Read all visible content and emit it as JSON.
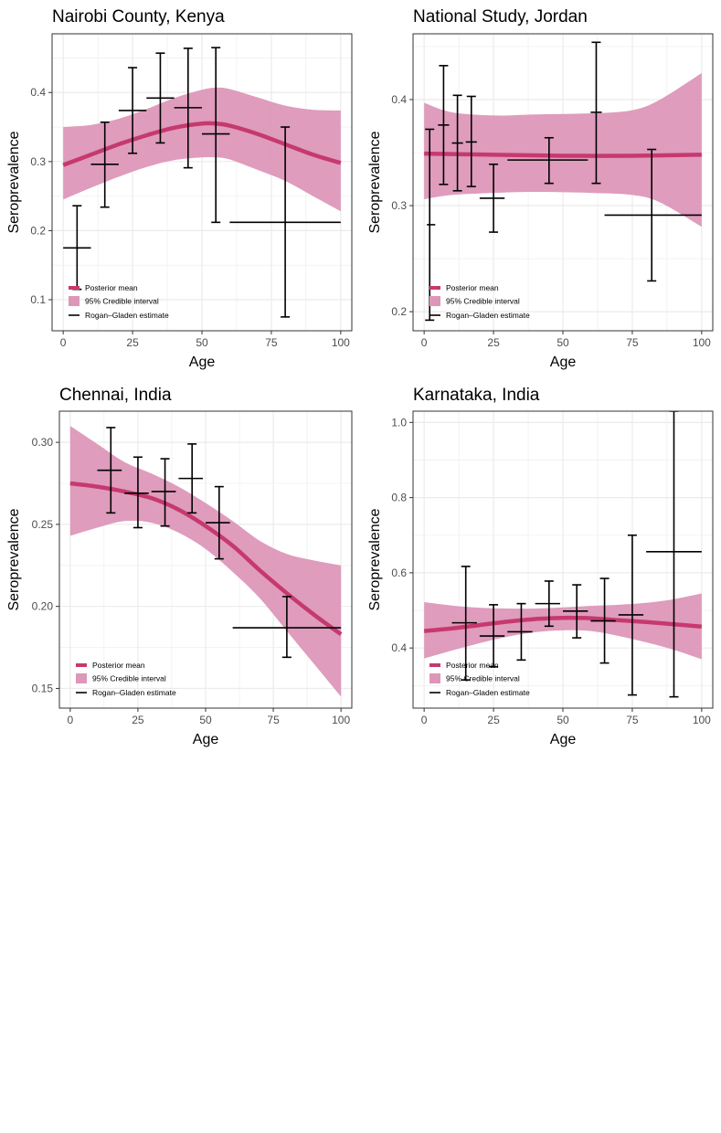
{
  "figure": {
    "colors": {
      "mean_line": "#c6396f",
      "ci_band": "#dd97b8",
      "estimate": "#000000",
      "grid": "#ebebeb",
      "panel_border": "#333333"
    },
    "legend": {
      "mean_label": "Posterior mean",
      "ci_label": "95% Credible interval",
      "estimate_label": "Rogan–Gladen estimate",
      "placement": "bottom-left"
    }
  },
  "chart_data": [
    {
      "type": "line",
      "title": "Nairobi County, Kenya",
      "xlabel": "Age",
      "ylabel": "Seroprevalence",
      "xlim": [
        -4,
        104
      ],
      "ylim": [
        0.055,
        0.485
      ],
      "xticks": [
        0,
        25,
        50,
        75,
        100
      ],
      "xtick_labels": [
        "0",
        "25",
        "50",
        "75",
        "100"
      ],
      "yticks": [
        0.1,
        0.2,
        0.3,
        0.4
      ],
      "ytick_labels": [
        "0.1",
        "0.2",
        "0.3",
        "0.4"
      ],
      "grid": true,
      "mean": {
        "x": [
          0,
          10,
          20,
          30,
          40,
          50,
          55,
          60,
          70,
          80,
          90,
          100
        ],
        "y": [
          0.295,
          0.31,
          0.325,
          0.338,
          0.349,
          0.355,
          0.355,
          0.352,
          0.34,
          0.325,
          0.31,
          0.298
        ]
      },
      "ci_upper": {
        "x": [
          0,
          10,
          20,
          30,
          40,
          50,
          55,
          60,
          70,
          80,
          90,
          100
        ],
        "y": [
          0.35,
          0.353,
          0.362,
          0.376,
          0.392,
          0.404,
          0.407,
          0.405,
          0.393,
          0.381,
          0.375,
          0.374
        ]
      },
      "ci_lower": {
        "x": [
          0,
          10,
          20,
          30,
          40,
          50,
          55,
          60,
          70,
          80,
          90,
          100
        ],
        "y": [
          0.245,
          0.262,
          0.278,
          0.292,
          0.302,
          0.306,
          0.306,
          0.303,
          0.288,
          0.272,
          0.25,
          0.228
        ]
      },
      "estimates": [
        {
          "x": 5,
          "xmin": 0,
          "xmax": 10,
          "y": 0.175,
          "ylow": 0.115,
          "yhigh": 0.236
        },
        {
          "x": 15,
          "xmin": 10,
          "xmax": 20,
          "y": 0.296,
          "ylow": 0.234,
          "yhigh": 0.357
        },
        {
          "x": 25,
          "xmin": 20,
          "xmax": 30,
          "y": 0.374,
          "ylow": 0.312,
          "yhigh": 0.436
        },
        {
          "x": 35,
          "xmin": 30,
          "xmax": 40,
          "y": 0.392,
          "ylow": 0.327,
          "yhigh": 0.457
        },
        {
          "x": 45,
          "xmin": 40,
          "xmax": 50,
          "y": 0.378,
          "ylow": 0.291,
          "yhigh": 0.464
        },
        {
          "x": 55,
          "xmin": 50,
          "xmax": 60,
          "y": 0.34,
          "ylow": 0.212,
          "yhigh": 0.465
        },
        {
          "x": 80,
          "xmin": 60,
          "xmax": 100,
          "y": 0.212,
          "ylow": 0.075,
          "yhigh": 0.35
        }
      ]
    },
    {
      "type": "line",
      "title": "National Study, Jordan",
      "xlabel": "Age",
      "ylabel": "Seroprevalence",
      "xlim": [
        -4,
        104
      ],
      "ylim": [
        0.182,
        0.462
      ],
      "xticks": [
        0,
        25,
        50,
        75,
        100
      ],
      "xtick_labels": [
        "0",
        "25",
        "50",
        "75",
        "100"
      ],
      "yticks": [
        0.2,
        0.3,
        0.4
      ],
      "ytick_labels": [
        "0.2",
        "0.3",
        "0.4"
      ],
      "grid": true,
      "mean": {
        "x": [
          0,
          25,
          50,
          75,
          100
        ],
        "y": [
          0.349,
          0.348,
          0.347,
          0.347,
          0.348
        ]
      },
      "ci_upper": {
        "x": [
          0,
          10,
          25,
          40,
          60,
          75,
          85,
          100
        ],
        "y": [
          0.397,
          0.388,
          0.385,
          0.386,
          0.387,
          0.39,
          0.4,
          0.425
        ]
      },
      "ci_lower": {
        "x": [
          0,
          10,
          25,
          40,
          60,
          75,
          85,
          100
        ],
        "y": [
          0.306,
          0.31,
          0.312,
          0.313,
          0.312,
          0.31,
          0.303,
          0.28
        ]
      },
      "estimates": [
        {
          "x": 2,
          "xmin": 1,
          "xmax": 4,
          "y": 0.282,
          "ylow": 0.192,
          "yhigh": 0.372
        },
        {
          "x": 7,
          "xmin": 5,
          "xmax": 9,
          "y": 0.376,
          "ylow": 0.32,
          "yhigh": 0.432
        },
        {
          "x": 12,
          "xmin": 10,
          "xmax": 14,
          "y": 0.359,
          "ylow": 0.314,
          "yhigh": 0.404
        },
        {
          "x": 17,
          "xmin": 15,
          "xmax": 19,
          "y": 0.36,
          "ylow": 0.318,
          "yhigh": 0.403
        },
        {
          "x": 25,
          "xmin": 20,
          "xmax": 29,
          "y": 0.307,
          "ylow": 0.275,
          "yhigh": 0.339
        },
        {
          "x": 45,
          "xmin": 30,
          "xmax": 59,
          "y": 0.343,
          "ylow": 0.321,
          "yhigh": 0.364
        },
        {
          "x": 62,
          "xmin": 60,
          "xmax": 64,
          "y": 0.388,
          "ylow": 0.321,
          "yhigh": 0.454
        },
        {
          "x": 82,
          "xmin": 65,
          "xmax": 100,
          "y": 0.291,
          "ylow": 0.229,
          "yhigh": 0.353
        }
      ]
    },
    {
      "type": "line",
      "title": "Chennai, India",
      "xlabel": "Age",
      "ylabel": "Seroprevalence",
      "xlim": [
        -4,
        104
      ],
      "ylim": [
        0.138,
        0.319
      ],
      "xticks": [
        0,
        25,
        50,
        75,
        100
      ],
      "xtick_labels": [
        "0",
        "25",
        "50",
        "75",
        "100"
      ],
      "yticks": [
        0.15,
        0.2,
        0.25,
        0.3
      ],
      "ytick_labels": [
        "0.15",
        "0.20",
        "0.25",
        "0.30"
      ],
      "grid": true,
      "mean": {
        "x": [
          0,
          10,
          20,
          30,
          40,
          50,
          60,
          70,
          80,
          90,
          100
        ],
        "y": [
          0.275,
          0.273,
          0.27,
          0.266,
          0.259,
          0.249,
          0.237,
          0.222,
          0.208,
          0.195,
          0.183
        ]
      },
      "ci_upper": {
        "x": [
          0,
          10,
          20,
          30,
          40,
          50,
          60,
          70,
          80,
          90,
          100
        ],
        "y": [
          0.31,
          0.299,
          0.288,
          0.281,
          0.273,
          0.263,
          0.252,
          0.24,
          0.232,
          0.228,
          0.225
        ]
      },
      "ci_lower": {
        "x": [
          0,
          10,
          20,
          30,
          40,
          50,
          60,
          70,
          80,
          90,
          100
        ],
        "y": [
          0.243,
          0.248,
          0.252,
          0.251,
          0.245,
          0.235,
          0.221,
          0.205,
          0.185,
          0.165,
          0.145
        ]
      },
      "estimates": [
        {
          "x": 15,
          "xmin": 10,
          "xmax": 19,
          "y": 0.283,
          "ylow": 0.257,
          "yhigh": 0.309
        },
        {
          "x": 25,
          "xmin": 20,
          "xmax": 29,
          "y": 0.269,
          "ylow": 0.248,
          "yhigh": 0.291
        },
        {
          "x": 35,
          "xmin": 30,
          "xmax": 39,
          "y": 0.27,
          "ylow": 0.249,
          "yhigh": 0.29
        },
        {
          "x": 45,
          "xmin": 40,
          "xmax": 49,
          "y": 0.278,
          "ylow": 0.257,
          "yhigh": 0.299
        },
        {
          "x": 55,
          "xmin": 50,
          "xmax": 59,
          "y": 0.251,
          "ylow": 0.229,
          "yhigh": 0.273
        },
        {
          "x": 80,
          "xmin": 60,
          "xmax": 100,
          "y": 0.187,
          "ylow": 0.169,
          "yhigh": 0.206
        }
      ]
    },
    {
      "type": "line",
      "title": "Karnataka, India",
      "xlabel": "Age",
      "ylabel": "Seroprevalence",
      "xlim": [
        -4,
        104
      ],
      "ylim": [
        0.24,
        1.03
      ],
      "xticks": [
        0,
        25,
        50,
        75,
        100
      ],
      "xtick_labels": [
        "0",
        "25",
        "50",
        "75",
        "100"
      ],
      "yticks": [
        0.4,
        0.6,
        0.8,
        1.0
      ],
      "ytick_labels": [
        "0.4",
        "0.6",
        "0.8",
        "1.0"
      ],
      "grid": true,
      "mean": {
        "x": [
          0,
          10,
          20,
          30,
          40,
          50,
          55,
          60,
          70,
          80,
          90,
          100
        ],
        "y": [
          0.445,
          0.452,
          0.461,
          0.47,
          0.477,
          0.48,
          0.48,
          0.479,
          0.474,
          0.469,
          0.463,
          0.457
        ]
      },
      "ci_upper": {
        "x": [
          0,
          10,
          20,
          30,
          40,
          50,
          60,
          70,
          80,
          90,
          100
        ],
        "y": [
          0.522,
          0.513,
          0.507,
          0.505,
          0.505,
          0.508,
          0.512,
          0.515,
          0.52,
          0.53,
          0.545
        ]
      },
      "ci_lower": {
        "x": [
          0,
          10,
          20,
          30,
          40,
          50,
          60,
          70,
          80,
          90,
          100
        ],
        "y": [
          0.372,
          0.393,
          0.413,
          0.43,
          0.442,
          0.447,
          0.445,
          0.432,
          0.415,
          0.395,
          0.37
        ]
      },
      "estimates": [
        {
          "x": 15,
          "xmin": 10,
          "xmax": 19,
          "y": 0.467,
          "ylow": 0.315,
          "yhigh": 0.617
        },
        {
          "x": 25,
          "xmin": 20,
          "xmax": 29,
          "y": 0.432,
          "ylow": 0.35,
          "yhigh": 0.515
        },
        {
          "x": 35,
          "xmin": 30,
          "xmax": 39,
          "y": 0.443,
          "ylow": 0.368,
          "yhigh": 0.518
        },
        {
          "x": 45,
          "xmin": 40,
          "xmax": 49,
          "y": 0.518,
          "ylow": 0.458,
          "yhigh": 0.578
        },
        {
          "x": 55,
          "xmin": 50,
          "xmax": 59,
          "y": 0.498,
          "ylow": 0.427,
          "yhigh": 0.568
        },
        {
          "x": 65,
          "xmin": 60,
          "xmax": 69,
          "y": 0.472,
          "ylow": 0.36,
          "yhigh": 0.585
        },
        {
          "x": 75,
          "xmin": 70,
          "xmax": 79,
          "y": 0.488,
          "ylow": 0.275,
          "yhigh": 0.7
        },
        {
          "x": 90,
          "xmin": 80,
          "xmax": 100,
          "y": 0.656,
          "ylow": 0.27,
          "yhigh": 1.03
        }
      ]
    }
  ]
}
